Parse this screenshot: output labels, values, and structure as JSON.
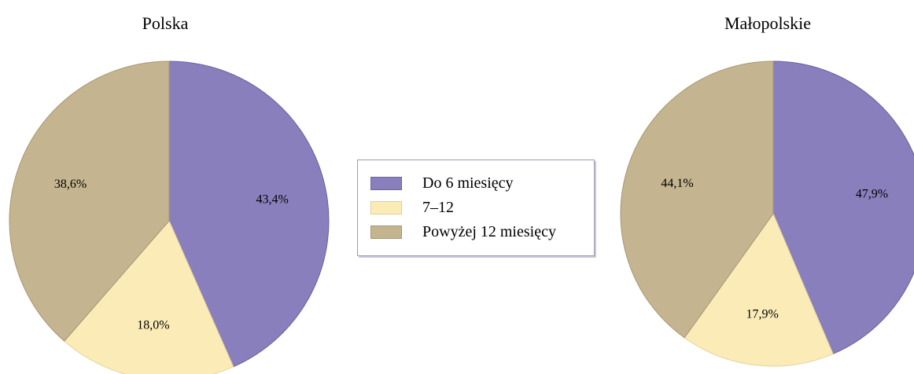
{
  "chart_data": [
    {
      "type": "pie",
      "title": "Polska",
      "slices": [
        {
          "label": "Do 6 miesięcy",
          "value": 43.4,
          "text": "43,4%",
          "color": "#8a7fbd"
        },
        {
          "label": "7–12",
          "value": 18.0,
          "text": "18,0%",
          "color": "#fbebb7"
        },
        {
          "label": "Powyżej 12 miesięcy",
          "value": 38.6,
          "text": "38,6%",
          "color": "#c4b48f"
        }
      ]
    },
    {
      "type": "pie",
      "title": "Małopolskie",
      "slices": [
        {
          "label": "Do 6 miesięcy",
          "value": 47.9,
          "text": "47,9%",
          "color": "#8a7fbd"
        },
        {
          "label": "7–12",
          "value": 17.9,
          "text": "17,9%",
          "color": "#fbebb7"
        },
        {
          "label": "Powyżej 12 miesięcy",
          "value": 44.1,
          "text": "44,1%",
          "color": "#c4b48f"
        }
      ]
    }
  ],
  "legend": {
    "placement": "center",
    "items": [
      {
        "label": "Do 6 miesięcy",
        "color": "#8a7fbd"
      },
      {
        "label": "7–12",
        "color": "#fbebb7"
      },
      {
        "label": "Powyżej 12 miesięcy",
        "color": "#c4b48f"
      }
    ]
  }
}
